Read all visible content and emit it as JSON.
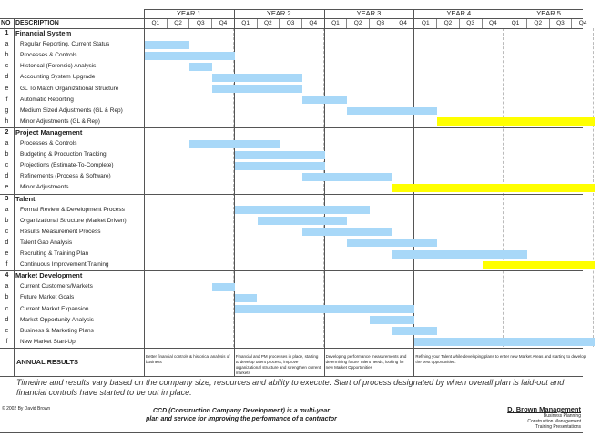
{
  "header": {
    "no": "NO",
    "description": "DESCRIPTION",
    "years": [
      "YEAR 1",
      "YEAR 2",
      "YEAR 3",
      "YEAR 4",
      "YEAR 5"
    ],
    "quarters": [
      "Q1",
      "Q2",
      "Q3",
      "Q4"
    ]
  },
  "sections": [
    {
      "no": "1",
      "title": "Financial System",
      "items": [
        {
          "no": "a",
          "label": "Regular Reporting, Current Status",
          "bar": {
            "start": 0,
            "len": 2,
            "color": "blue"
          }
        },
        {
          "no": "b",
          "label": "Processes & Controls",
          "bar": {
            "start": 0,
            "len": 4,
            "color": "blue"
          }
        },
        {
          "no": "c",
          "label": "Historical (Forensic) Analysis",
          "bar": {
            "start": 2,
            "len": 1,
            "color": "blue"
          }
        },
        {
          "no": "d",
          "label": "Accounting System Upgrade",
          "bar": {
            "start": 3,
            "len": 4,
            "color": "blue"
          }
        },
        {
          "no": "e",
          "label": "GL To Match Organizational Structure",
          "bar": {
            "start": 3,
            "len": 4,
            "color": "blue"
          }
        },
        {
          "no": "f",
          "label": "Automatic Reporting",
          "bar": {
            "start": 7,
            "len": 2,
            "color": "blue"
          }
        },
        {
          "no": "g",
          "label": "Medium Sized Adjustments (GL & Rep)",
          "bar": {
            "start": 9,
            "len": 4,
            "color": "blue"
          }
        },
        {
          "no": "h",
          "label": "Minor Adjustments (GL & Rep)",
          "bar": {
            "start": 13,
            "len": 7,
            "color": "yellow"
          }
        }
      ]
    },
    {
      "no": "2",
      "title": "Project Management",
      "items": [
        {
          "no": "a",
          "label": "Processes & Controls",
          "bar": {
            "start": 2,
            "len": 4,
            "color": "blue"
          }
        },
        {
          "no": "b",
          "label": "Budgeting & Production Tracking",
          "bar": {
            "start": 4,
            "len": 4,
            "color": "blue"
          }
        },
        {
          "no": "c",
          "label": "Projections (Estimate-To-Complete)",
          "bar": {
            "start": 4,
            "len": 4,
            "color": "blue"
          }
        },
        {
          "no": "d",
          "label": "Refinements (Process & Software)",
          "bar": {
            "start": 7,
            "len": 4,
            "color": "blue"
          }
        },
        {
          "no": "e",
          "label": "Minor Adjustments",
          "bar": {
            "start": 11,
            "len": 9,
            "color": "yellow"
          }
        }
      ]
    },
    {
      "no": "3",
      "title": "Talent",
      "items": [
        {
          "no": "a",
          "label": "Formal Review & Development Process",
          "bar": {
            "start": 4,
            "len": 6,
            "color": "blue"
          }
        },
        {
          "no": "b",
          "label": "Organizational Structure (Market Driven)",
          "bar": {
            "start": 5,
            "len": 4,
            "color": "blue"
          }
        },
        {
          "no": "c",
          "label": "Results Measurement Process",
          "bar": {
            "start": 7,
            "len": 4,
            "color": "blue"
          }
        },
        {
          "no": "d",
          "label": "Talent Gap Analysis",
          "bar": {
            "start": 9,
            "len": 4,
            "color": "blue"
          }
        },
        {
          "no": "e",
          "label": "Recruiting & Training Plan",
          "bar": {
            "start": 11,
            "len": 6,
            "color": "blue"
          }
        },
        {
          "no": "f",
          "label": "Continuous Improvement Training",
          "bar": {
            "start": 15,
            "len": 5,
            "color": "yellow"
          }
        }
      ]
    },
    {
      "no": "4",
      "title": "Market Development",
      "items": [
        {
          "no": "a",
          "label": "Current Customers/Markets",
          "bar": {
            "start": 3,
            "len": 1,
            "color": "blue"
          }
        },
        {
          "no": "b",
          "label": "Future Market Goals",
          "bar": {
            "start": 4,
            "len": 1,
            "color": "blue"
          }
        },
        {
          "no": "c",
          "label": "Current Market Expansion",
          "bar": {
            "start": 4,
            "len": 8,
            "color": "blue"
          }
        },
        {
          "no": "d",
          "label": "Market Opportunity Analysis",
          "bar": {
            "start": 10,
            "len": 2,
            "color": "blue"
          }
        },
        {
          "no": "e",
          "label": "Business & Marketing Plans",
          "bar": {
            "start": 11,
            "len": 2,
            "color": "blue"
          }
        },
        {
          "no": "f",
          "label": "New Market Start-Up",
          "bar": {
            "start": 12,
            "len": 8,
            "color": "blue"
          }
        }
      ]
    }
  ],
  "annual_results": {
    "label": "ANNUAL RESULTS",
    "cells": [
      "Better financial controls & historical analysis of business",
      "Financial and PM processes in place, starting to develop talent process, improve organizational structure and strengthen current markets",
      "Developing performance measurements and determining future Talent needs, looking for new Market Opportunities",
      "Refining your Talent while developing plans to enter new Market Areas and starting to develop the best opportunities."
    ]
  },
  "note": "Timeline and results vary based on the company size, resources and ability to execute.  Start of process designated by when overall plan is laid-out and financial controls have started to be put in place.",
  "footer": {
    "copyright": "© 2002 By David Brown",
    "tagline": "CCD (Construction Company Development) is a multi-year plan and service for improving the performance of a contractor",
    "company": "D. Brown Management",
    "services": [
      "Business Planning",
      "Construction Management",
      "Training Presentations"
    ]
  },
  "colors": {
    "blue": "#a8d8f8",
    "yellow": "#ffff00"
  }
}
